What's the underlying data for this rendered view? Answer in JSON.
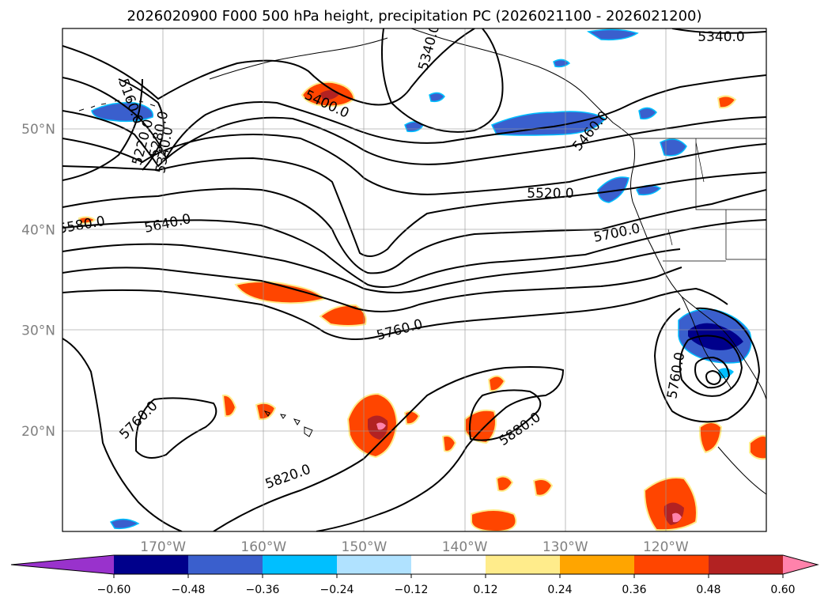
{
  "title": "2026020900 F000 500 hPa height, precipitation PC (2026021100 - 2026021200)",
  "map": {
    "lon_range": [
      -180,
      -110
    ],
    "lat_range": [
      10,
      60
    ],
    "lon_ticks": [
      {
        "value": -170,
        "label": "170°W"
      },
      {
        "value": -160,
        "label": "160°W"
      },
      {
        "value": -150,
        "label": "150°W"
      },
      {
        "value": -140,
        "label": "140°W"
      },
      {
        "value": -130,
        "label": "130°W"
      },
      {
        "value": -120,
        "label": "120°W"
      }
    ],
    "lat_ticks": [
      {
        "value": 20,
        "label": "20°N"
      },
      {
        "value": 30,
        "label": "30°N"
      },
      {
        "value": 40,
        "label": "40°N"
      },
      {
        "value": 50,
        "label": "50°N"
      }
    ],
    "gridlines": true
  },
  "contour_labels": [
    {
      "text": "5340.0"
    },
    {
      "text": "5340.0"
    },
    {
      "text": "5400.0"
    },
    {
      "text": "5460.0"
    },
    {
      "text": "5520.0"
    },
    {
      "text": "5640.0"
    },
    {
      "text": "5700.0"
    },
    {
      "text": "5580.0"
    },
    {
      "text": "5760.0"
    },
    {
      "text": "5760.0"
    },
    {
      "text": "5760.0"
    },
    {
      "text": "5820.0"
    },
    {
      "text": "5880.0"
    },
    {
      "text": "5160.0"
    },
    {
      "text": "5220.0"
    },
    {
      "text": "5280.0"
    },
    {
      "text": "5340.0"
    }
  ],
  "colorbar": {
    "extend": "both",
    "colors": [
      "#9932cc",
      "#00008b",
      "#3a5fcd",
      "#00bfff",
      "#b0e2ff",
      "#ffffff",
      "#ffec8b",
      "#ffa500",
      "#ff4500",
      "#b22222",
      "#ff82ab"
    ],
    "ticks": [
      "−0.60",
      "−0.48",
      "−0.36",
      "−0.24",
      "−0.12",
      "0.12",
      "0.24",
      "0.36",
      "0.48",
      "0.60"
    ]
  }
}
